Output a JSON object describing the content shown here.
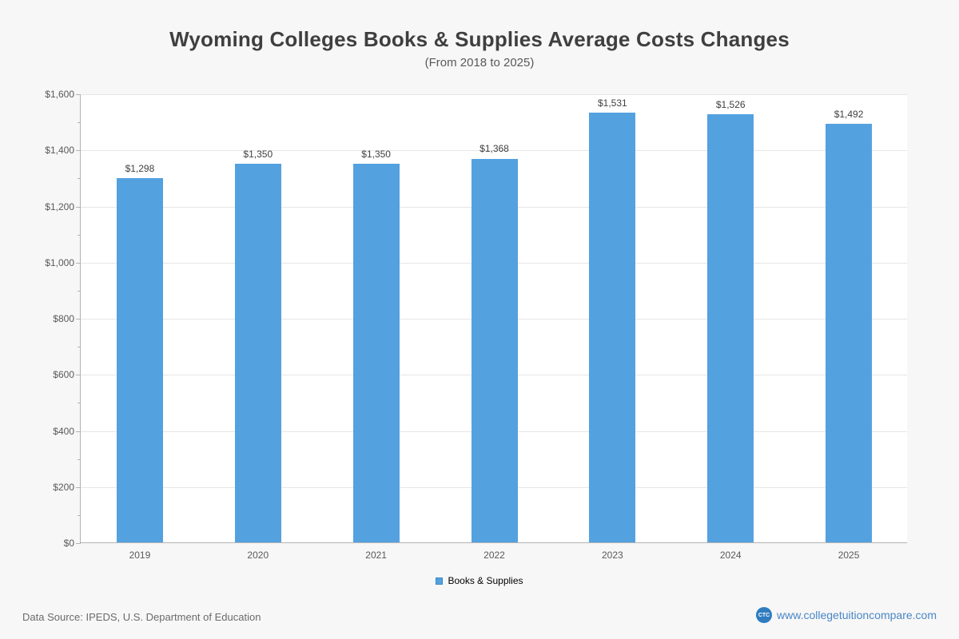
{
  "chart_data": {
    "type": "bar",
    "title": "Wyoming Colleges  Books & Supplies Average Costs Changes",
    "subtitle": "(From 2018 to 2025)",
    "categories": [
      "2019",
      "2020",
      "2021",
      "2022",
      "2023",
      "2024",
      "2025"
    ],
    "series": [
      {
        "name": "Books & Supplies",
        "values": [
          1298,
          1350,
          1350,
          1368,
          1531,
          1526,
          1492
        ],
        "labels": [
          "$1,298",
          "$1,350",
          "$1,350",
          "$1,368",
          "$1,531",
          "$1,526",
          "$1,492"
        ],
        "color": "#54a1e0"
      }
    ],
    "xlabel": "",
    "ylabel": "",
    "ylim": [
      0,
      1600
    ],
    "ytick_step": 200,
    "ytick_labels": [
      "$0",
      "$200",
      "$400",
      "$600",
      "$800",
      "$1,000",
      "$1,200",
      "$1,400",
      "$1,600"
    ],
    "grid": true,
    "legend_position": "bottom"
  },
  "legend": {
    "label": "Books & Supplies"
  },
  "footer": {
    "source": "Data Source: IPEDS, U.S. Department of Education",
    "logo_text": "CTC",
    "website": "www.collegetuitioncompare.com"
  }
}
